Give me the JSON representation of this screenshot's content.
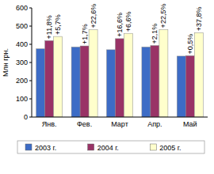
{
  "chart_data": {
    "type": "bar",
    "y_label": "Млн грн.",
    "categories": [
      "Янв.",
      "Фев.",
      "Март",
      "Апр.",
      "Май"
    ],
    "series": [
      {
        "name": "2003 г.",
        "color": "#3d6cc6",
        "values": [
          375,
          385,
          370,
          385,
          335
        ]
      },
      {
        "name": "2004 г.",
        "color": "#993366",
        "values": [
          420,
          391,
          431,
          393,
          337
        ],
        "annotations": [
          "+11,8%",
          "+1,7%",
          "+16,6%",
          "+2,1%",
          "+0,5%"
        ]
      },
      {
        "name": "2005 г.",
        "color": "#ffffcc",
        "values": [
          443,
          480,
          460,
          481,
          464
        ],
        "annotations": [
          "+5,7%",
          "+22,6%",
          "+6,6%",
          "+22,5%",
          "+37,8%"
        ]
      }
    ],
    "ylim": [
      0,
      600
    ],
    "yticks": [
      0,
      100,
      200,
      300,
      400,
      500,
      600
    ],
    "grid": false,
    "legend": "bottom"
  }
}
